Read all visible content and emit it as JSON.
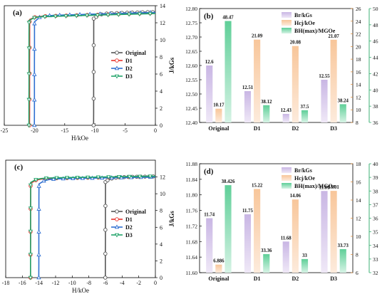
{
  "chart_data": [
    {
      "panel": "(a)",
      "type": "line",
      "xlabel": "H/kOe",
      "ylabel": "J/kGs",
      "xlim": [
        -25,
        0
      ],
      "ylim": [
        0,
        14
      ],
      "xticks": [
        -25,
        -20,
        -15,
        -10,
        -5,
        0
      ],
      "yticks": [
        0,
        2,
        4,
        6,
        8,
        10,
        12,
        14
      ],
      "legend": "center-right",
      "series": [
        {
          "name": "Original",
          "color": "#555555",
          "marker": "circle",
          "knee": -10.2,
          "slope": 0.06,
          "base": 12.0,
          "top": 12.75
        },
        {
          "name": "D1",
          "color": "#e8322c",
          "marker": "circle",
          "knee": -20.8,
          "slope": 0.055,
          "base": 12.3,
          "top": 12.65
        },
        {
          "name": "D2",
          "color": "#2f6fd1",
          "marker": "triangle",
          "knee": -20.0,
          "slope": 0.06,
          "base": 12.0,
          "top": 12.7
        },
        {
          "name": "D3",
          "color": "#22a46a",
          "marker": "triangle-down",
          "knee": -20.9,
          "slope": 0.055,
          "base": 12.2,
          "top": 12.6
        }
      ]
    },
    {
      "panel": "(b)",
      "type": "bar",
      "categories": [
        "Original",
        "D1",
        "D2",
        "D3"
      ],
      "legend": "top-right",
      "left_axis": {
        "ylim": [
          12.4,
          12.8
        ],
        "ticks": [
          "12.40",
          "12.45",
          "12.50",
          "12.55",
          "12.60",
          "12.65",
          "12.70",
          "12.75",
          "12.80"
        ]
      },
      "right_axis_outer": {
        "ylim": [
          36,
          50
        ],
        "ticks": [
          "36",
          "38",
          "40",
          "42",
          "44",
          "46",
          "48",
          "50"
        ],
        "color": "#2aa866"
      },
      "right_axis_inner": {
        "ylim": [
          8,
          26
        ],
        "ticks": [
          "8",
          "10",
          "12",
          "14",
          "16",
          "18",
          "20",
          "22",
          "24",
          "26"
        ],
        "color": "#e58a2c"
      },
      "series": [
        {
          "name": "Br/kGs",
          "axis": "left",
          "values": [
            12.6,
            12.51,
            12.43,
            12.55
          ],
          "labels": [
            "12.6",
            "12.51",
            "12.43",
            "12.55"
          ],
          "color_top": "#c9b6e4",
          "color_bottom": "#efe8f7"
        },
        {
          "name": "Hcj/kOe",
          "axis": "right_inner",
          "values": [
            10.17,
            21.09,
            20.08,
            21.07
          ],
          "labels": [
            "10.17",
            "21.09",
            "20.08",
            "21.07"
          ],
          "color_top": "#f8c69a",
          "color_bottom": "#fdebdc"
        },
        {
          "name": "BH(max)/MGOe",
          "axis": "right_outer",
          "values": [
            48.47,
            38.12,
            37.5,
            38.24
          ],
          "labels": [
            "48.47",
            "38.12",
            "37.5",
            "38.24"
          ],
          "color_top": "#5fcf98",
          "color_bottom": "#d6f3e5"
        }
      ]
    },
    {
      "panel": "(c)",
      "type": "line",
      "xlabel": "H/kOe",
      "ylabel": "J/kGs",
      "xlim": [
        -18,
        0
      ],
      "ylim": [
        0,
        14
      ],
      "xticks": [
        -18,
        -16,
        -14,
        -12,
        -10,
        -8,
        -6,
        -4,
        -2,
        0
      ],
      "yticks": [
        0,
        2,
        4,
        6,
        8,
        10,
        12
      ],
      "legend": "center-right",
      "series": [
        {
          "name": "Original",
          "color": "#555555",
          "marker": "circle",
          "knee": -6.0,
          "slope": 0.05,
          "base": 11.2,
          "top": 11.75
        },
        {
          "name": "D1",
          "color": "#e8322c",
          "marker": "circle",
          "knee": -15.0,
          "slope": 0.045,
          "base": 11.2,
          "top": 11.75
        },
        {
          "name": "D2",
          "color": "#2f6fd1",
          "marker": "triangle",
          "knee": -14.0,
          "slope": 0.05,
          "base": 11.1,
          "top": 11.68
        },
        {
          "name": "D3",
          "color": "#22a46a",
          "marker": "triangle-down",
          "knee": -15.0,
          "slope": 0.045,
          "base": 11.3,
          "top": 11.81
        }
      ]
    },
    {
      "panel": "(d)",
      "type": "bar",
      "categories": [
        "Original",
        "D1",
        "D2",
        "D3"
      ],
      "legend": "top-right",
      "left_axis": {
        "ylim": [
          11.6,
          11.88
        ],
        "ticks": [
          "11.60",
          "11.64",
          "11.68",
          "11.72",
          "11.76",
          "11.80",
          "11.84",
          "11.88"
        ]
      },
      "right_axis_outer": {
        "ylim": [
          32,
          40
        ],
        "ticks": [
          "32",
          "33",
          "34",
          "35",
          "36",
          "37",
          "38",
          "39",
          "40"
        ],
        "color": "#2aa866"
      },
      "right_axis_inner": {
        "ylim": [
          6,
          18
        ],
        "ticks": [
          "6",
          "8",
          "10",
          "12",
          "14",
          "16",
          "18"
        ],
        "color": "#e58a2c"
      },
      "series": [
        {
          "name": "Br/kGs",
          "axis": "left",
          "values": [
            11.74,
            11.75,
            11.68,
            11.81
          ],
          "labels": [
            "11.74",
            "11.75",
            "11.68",
            "11.81"
          ],
          "color_top": "#c9b6e4",
          "color_bottom": "#efe8f7"
        },
        {
          "name": "Hcj/kOe",
          "axis": "right_inner",
          "values": [
            6.886,
            15.22,
            14.06,
            15.01
          ],
          "labels": [
            "6.886",
            "15.22",
            "14.06",
            "15.01"
          ],
          "color_top": "#f8c69a",
          "color_bottom": "#fdebdc"
        },
        {
          "name": "BH(max)/MGOe",
          "axis": "right_outer",
          "values": [
            38.426,
            33.36,
            33,
            33.73
          ],
          "labels": [
            "38.426",
            "33.36",
            "33",
            "33.73"
          ],
          "color_top": "#5fcf98",
          "color_bottom": "#d6f3e5"
        }
      ]
    }
  ]
}
